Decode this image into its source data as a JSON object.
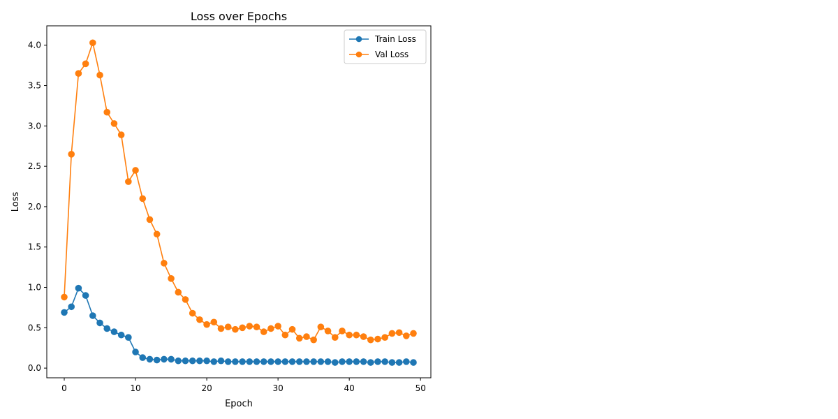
{
  "chart_data": {
    "type": "line",
    "title": "Loss over Epochs",
    "xlabel": "Epoch",
    "ylabel": "Loss",
    "xlim": [
      -2.45,
      51.45
    ],
    "ylim": [
      -0.12,
      4.24
    ],
    "xticks": [
      0,
      10,
      20,
      30,
      40,
      50
    ],
    "yticks": [
      0.0,
      0.5,
      1.0,
      1.5,
      2.0,
      2.5,
      3.0,
      3.5,
      4.0
    ],
    "xtick_labels": [
      "0",
      "10",
      "20",
      "30",
      "40",
      "50"
    ],
    "ytick_labels": [
      "0.0",
      "0.5",
      "1.0",
      "1.5",
      "2.0",
      "2.5",
      "3.0",
      "3.5",
      "4.0"
    ],
    "grid": false,
    "legend_position": "top-right",
    "x": [
      0,
      1,
      2,
      3,
      4,
      5,
      6,
      7,
      8,
      9,
      10,
      11,
      12,
      13,
      14,
      15,
      16,
      17,
      18,
      19,
      20,
      21,
      22,
      23,
      24,
      25,
      26,
      27,
      28,
      29,
      30,
      31,
      32,
      33,
      34,
      35,
      36,
      37,
      38,
      39,
      40,
      41,
      42,
      43,
      44,
      45,
      46,
      47,
      48,
      49
    ],
    "series": [
      {
        "name": "Train Loss",
        "color": "#1f77b4",
        "marker": "circle",
        "values": [
          0.69,
          0.76,
          0.99,
          0.9,
          0.65,
          0.56,
          0.49,
          0.45,
          0.41,
          0.38,
          0.2,
          0.13,
          0.11,
          0.1,
          0.11,
          0.11,
          0.09,
          0.09,
          0.09,
          0.09,
          0.09,
          0.08,
          0.09,
          0.08,
          0.08,
          0.08,
          0.08,
          0.08,
          0.08,
          0.08,
          0.08,
          0.08,
          0.08,
          0.08,
          0.08,
          0.08,
          0.08,
          0.08,
          0.07,
          0.08,
          0.08,
          0.08,
          0.08,
          0.07,
          0.08,
          0.08,
          0.07,
          0.07,
          0.08,
          0.07
        ]
      },
      {
        "name": "Val Loss",
        "color": "#ff7f0e",
        "marker": "circle",
        "values": [
          0.88,
          2.65,
          3.65,
          3.77,
          4.03,
          3.63,
          3.17,
          3.03,
          2.89,
          2.31,
          2.45,
          2.1,
          1.84,
          1.66,
          1.3,
          1.11,
          0.94,
          0.85,
          0.68,
          0.6,
          0.54,
          0.57,
          0.49,
          0.51,
          0.48,
          0.5,
          0.52,
          0.51,
          0.45,
          0.49,
          0.52,
          0.41,
          0.48,
          0.37,
          0.39,
          0.35,
          0.51,
          0.46,
          0.38,
          0.46,
          0.41,
          0.41,
          0.39,
          0.35,
          0.36,
          0.38,
          0.43,
          0.44,
          0.4,
          0.43
        ]
      }
    ]
  }
}
